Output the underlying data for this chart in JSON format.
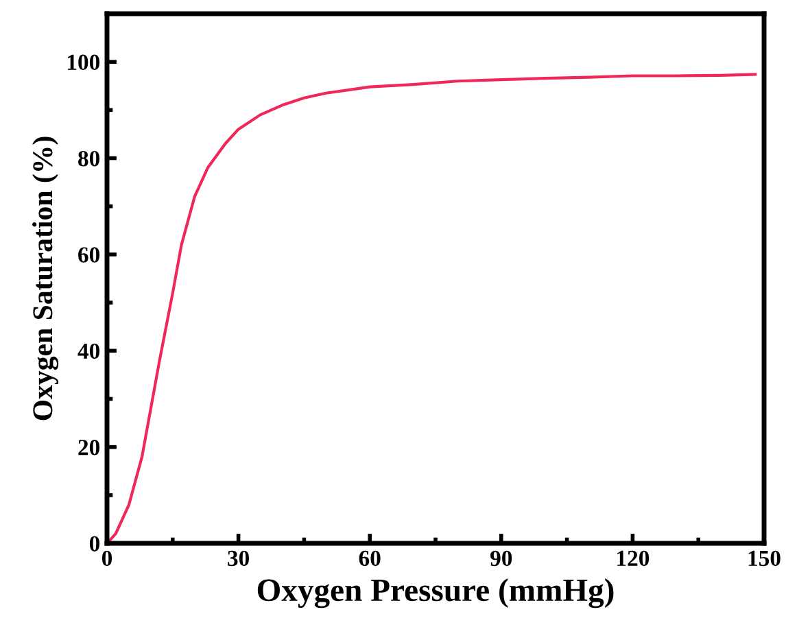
{
  "chart_data": {
    "type": "line",
    "xlabel": "Oxygen Pressure (mmHg)",
    "ylabel": "Oxygen Saturation (%)",
    "xlim": [
      0,
      150
    ],
    "ylim": [
      0,
      110
    ],
    "xticks": [
      0,
      30,
      60,
      90,
      120,
      150
    ],
    "yticks": [
      0,
      20,
      40,
      60,
      80,
      100
    ],
    "grid": false,
    "marker": "none",
    "line_style": "solid",
    "series": [
      {
        "color": "#f0285a",
        "x": [
          0,
          2,
          5,
          8,
          10,
          12,
          15,
          17,
          20,
          23,
          27,
          30,
          35,
          40,
          45,
          50,
          60,
          70,
          80,
          90,
          100,
          110,
          120,
          130,
          140,
          148
        ],
        "values": [
          0,
          2,
          8,
          18,
          28,
          38,
          52,
          62,
          72,
          78,
          83,
          86,
          89,
          91,
          92.5,
          93.5,
          94.8,
          95.3,
          96,
          96.3,
          96.6,
          96.8,
          97.1,
          97.1,
          97.2,
          97.4
        ]
      }
    ]
  }
}
